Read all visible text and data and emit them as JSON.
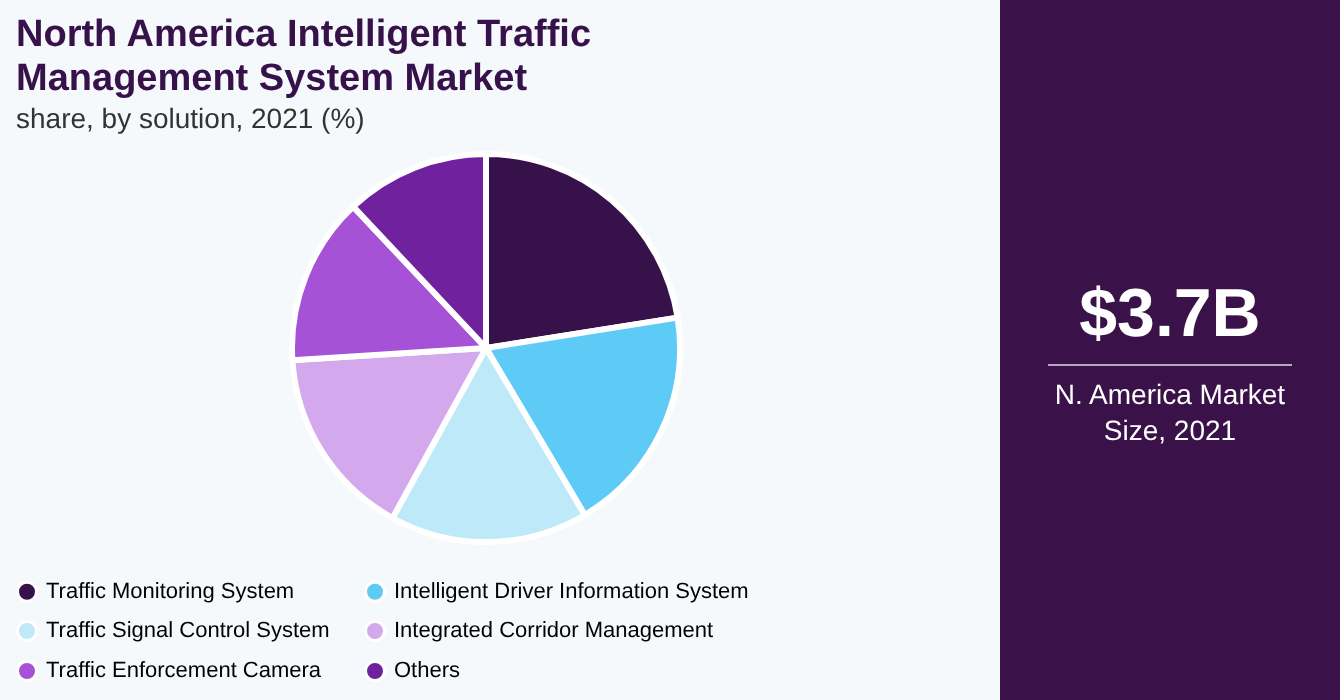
{
  "chart_data": {
    "type": "pie",
    "title": "North America Intelligent Traffic Management System Market",
    "subtitle": "share, by solution, 2021 (%)",
    "categories": [
      "Traffic Monitoring System",
      "Intelligent Driver Information System",
      "Traffic Signal Control System",
      "Integrated Corridor Management",
      "Traffic Enforcement Camera",
      "Others"
    ],
    "values": [
      22.5,
      19,
      16.5,
      16,
      14,
      12
    ],
    "colors": [
      "#36114a",
      "#5ecbf6",
      "#bde9f9",
      "#d4a8ec",
      "#a552d6",
      "#70229e"
    ],
    "legend": "bottom",
    "annotations": [
      "$3.7B",
      "N. America Market Size, 2021"
    ]
  }
}
